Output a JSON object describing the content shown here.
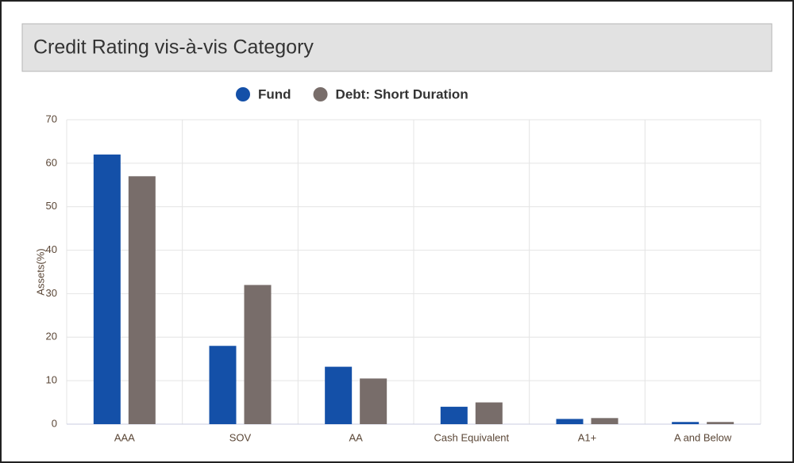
{
  "chart_data": {
    "type": "bar",
    "title": "Credit Rating vis-à-vis Category",
    "y_label": "Assets(%)",
    "categories": [
      "AAA",
      "SOV",
      "AA",
      "Cash Equivalent",
      "A1+",
      "A and Below"
    ],
    "series": [
      {
        "name": "Fund",
        "color": "#1450a8",
        "values": [
          62,
          18,
          13.2,
          4,
          1.2,
          0.5
        ]
      },
      {
        "name": "Debt: Short Duration",
        "color": "#786d6a",
        "values": [
          57,
          32,
          10.5,
          5,
          1.4,
          0.5
        ]
      }
    ],
    "ylim": [
      0,
      70
    ],
    "yticks": [
      0,
      10,
      20,
      30,
      40,
      50,
      60,
      70
    ],
    "grid": true
  }
}
